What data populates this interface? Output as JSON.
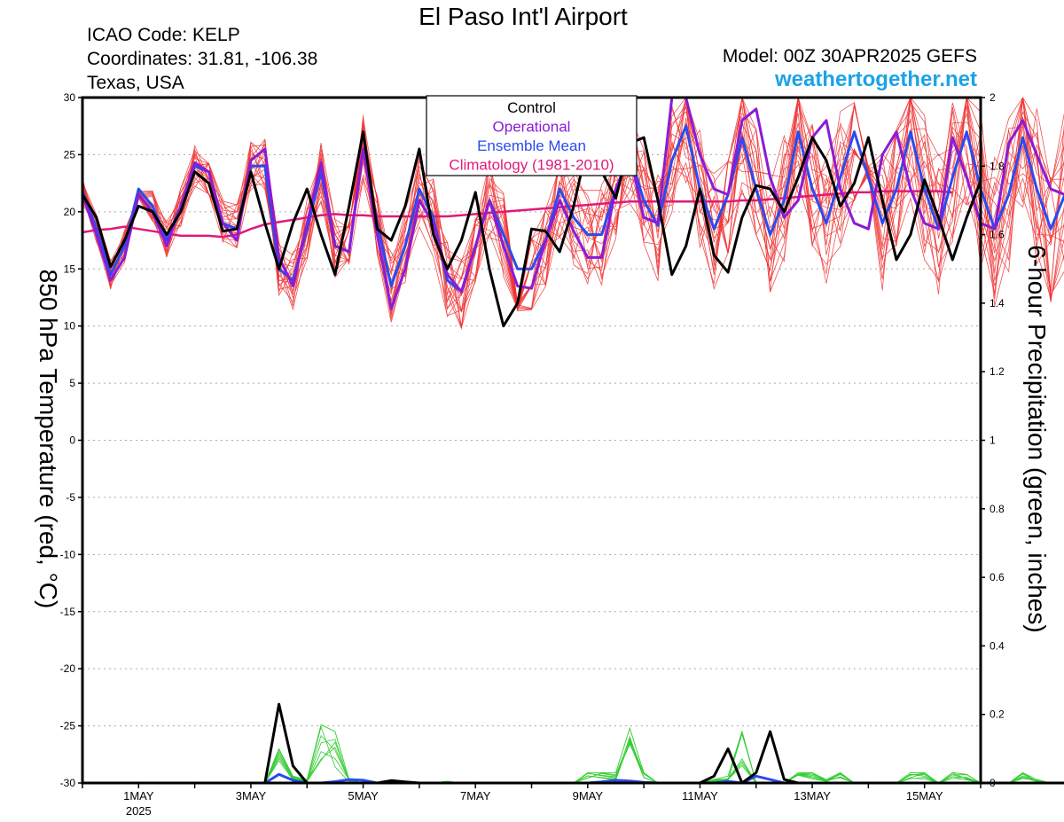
{
  "header": {
    "title": "El Paso Int'l Airport",
    "icao": "ICAO Code: KELP",
    "coordinates": "Coordinates: 31.81, -106.38",
    "region": "Texas, USA",
    "model": "Model: 00Z 30APR2025 GEFS",
    "site": "weathertogether.net"
  },
  "colors": {
    "ensemble_members": "#ee3333",
    "control": "#000000",
    "operational": "#8a1cd6",
    "ensemble_mean": "#2a4bef",
    "climatology": "#e0197a",
    "precip_members": "#33cc33",
    "site": "#1aa3e8"
  },
  "chart_data": {
    "type": "line",
    "y_left": {
      "label": "850 hPa Temperature (red, °C)",
      "range": [
        -30,
        30
      ],
      "ticks": [
        "30",
        "25",
        "20",
        "15",
        "10",
        "5",
        "0",
        "-5",
        "-10",
        "-15",
        "-20",
        "-25",
        "-30"
      ]
    },
    "y_right": {
      "label": "6-hour Precipitation (green, inches)",
      "range": [
        0,
        2
      ],
      "ticks": [
        "2",
        "1.8",
        "1.6",
        "1.4",
        "1.2",
        "1",
        "0.8",
        "0.6",
        "0.4",
        "0.2",
        "0"
      ]
    },
    "x": {
      "start": "2025-04-30T00Z",
      "end": "2025-05-16T00Z",
      "step_hours": 6,
      "tick_labels": [
        "1MAY",
        "3MAY",
        "5MAY",
        "7MAY",
        "9MAY",
        "11MAY",
        "13MAY",
        "15MAY"
      ],
      "year_label": "2025"
    },
    "grid": "horizontal dotted",
    "legend": {
      "position": "top-center",
      "entries": [
        "Control",
        "Operational",
        "Ensemble Mean",
        "Climatology (1981-2010)"
      ]
    },
    "series": [
      {
        "name": "Control",
        "values": [
          21.5,
          19.5,
          15.2,
          17.5,
          20.5,
          20,
          18,
          20,
          23.5,
          22.5,
          18.3,
          18.5,
          23.5,
          19,
          15,
          19,
          22,
          18,
          14.5,
          20.5,
          27,
          18.5,
          17.5,
          20.5,
          25.5,
          18,
          15,
          17.5,
          21.7,
          15,
          10,
          12,
          18.5,
          18.3,
          16.5,
          20.5,
          26,
          23.5,
          21.2,
          26,
          26.5,
          21,
          14.5,
          17,
          22,
          16.2,
          14.7,
          19.5,
          22.3,
          22,
          20,
          23,
          26.5,
          24.5,
          20.5,
          22.5,
          26.5,
          21,
          15.8,
          18,
          22.8,
          19.5,
          15.8,
          19.5,
          22.7
        ]
      },
      {
        "name": "Operational",
        "values": [
          21.5,
          18,
          14,
          16,
          21.5,
          20,
          17,
          20.5,
          24.3,
          23.5,
          19,
          17.5,
          24.5,
          25.5,
          16,
          13.5,
          19,
          24.3,
          17,
          16.5,
          25.5,
          18,
          11.5,
          15,
          21,
          19,
          14.5,
          13,
          17,
          21,
          17,
          13.5,
          13.3,
          17.5,
          21,
          18.3,
          16,
          16,
          22,
          25,
          19.5,
          19,
          30,
          30,
          25,
          22,
          21.5,
          28,
          29,
          23,
          19.5,
          21,
          26.5,
          28,
          22,
          19,
          18.5,
          25,
          27,
          22,
          19,
          18.5,
          26.5,
          23,
          19,
          18.5,
          26,
          28,
          25,
          22,
          21.5,
          26.5
        ]
      },
      {
        "name": "Ensemble Mean",
        "values": [
          21.8,
          18.5,
          14.5,
          17,
          22,
          20.5,
          17.5,
          20.5,
          24,
          23.5,
          19,
          18.5,
          24,
          24,
          15,
          14,
          18.5,
          23.5,
          17,
          16.5,
          25.5,
          19,
          13.5,
          17,
          22,
          19.5,
          14,
          13,
          17,
          21,
          18,
          15,
          15,
          17.5,
          22,
          19.5,
          18,
          18,
          22,
          25,
          21,
          18.8,
          24.5,
          27.5,
          22,
          18.5,
          21.5,
          26.5,
          22,
          18,
          21,
          27,
          22,
          19,
          23,
          27,
          23,
          19,
          22,
          27,
          22,
          18.5,
          23,
          27,
          22,
          18.5,
          21.5,
          26.5,
          22,
          18.5,
          21.5,
          26.5
        ]
      },
      {
        "name": "Climatology (1981-2010)",
        "values": [
          18.2,
          18.4,
          18.5,
          18.7,
          18.5,
          18.3,
          18.1,
          17.9,
          17.9,
          17.9,
          17.8,
          18,
          18.5,
          18.9,
          19.1,
          19.3,
          19.5,
          19.7,
          19.8,
          19.7,
          19.7,
          19.6,
          19.6,
          19.6,
          19.6,
          19.6,
          19.6,
          19.7,
          19.8,
          19.9,
          20,
          20.1,
          20.2,
          20.3,
          20.4,
          20.5,
          20.6,
          20.7,
          20.8,
          20.9,
          20.9,
          20.9,
          20.9,
          20.9,
          20.9,
          20.9,
          20.9,
          21,
          21,
          21.1,
          21.2,
          21.3,
          21.4,
          21.5,
          21.6,
          21.7,
          21.7,
          21.8,
          21.8,
          21.8,
          21.8,
          21.8,
          21.7
        ]
      },
      {
        "name": "Control Precipitation",
        "axis": "right",
        "values": [
          0,
          0,
          0,
          0,
          0,
          0,
          0,
          0,
          0,
          0,
          0,
          0,
          0,
          0,
          0.23,
          0.05,
          0,
          0,
          0,
          0,
          0,
          0,
          0.007,
          0.003,
          0,
          0,
          0,
          0,
          0,
          0,
          0,
          0,
          0,
          0,
          0,
          0,
          0,
          0,
          0,
          0,
          0,
          0,
          0,
          0,
          0,
          0.02,
          0.1,
          0,
          0.03,
          0.15,
          0.01,
          0,
          0,
          0,
          0,
          0,
          0,
          0,
          0,
          0,
          0,
          0,
          0,
          0,
          0,
          0,
          0,
          0,
          0,
          0,
          0,
          0,
          0
        ]
      },
      {
        "name": "Ensemble Mean Precipitation",
        "axis": "right",
        "values": [
          0,
          0,
          0,
          0,
          0,
          0,
          0,
          0,
          0,
          0,
          0,
          0,
          0,
          0,
          0.025,
          0.008,
          0,
          0,
          0.004,
          0.01,
          0.008,
          0,
          0,
          0,
          0,
          0,
          0,
          0,
          0,
          0,
          0,
          0,
          0,
          0,
          0,
          0,
          0,
          0.003,
          0.008,
          0.006,
          0.002,
          0,
          0,
          0,
          0,
          0,
          0.005,
          0,
          0.02,
          0.01,
          0,
          0,
          0,
          0,
          0,
          0,
          0,
          0,
          0,
          0,
          0,
          0,
          0,
          0,
          0,
          0,
          0,
          0,
          0,
          0,
          0,
          0,
          0
        ]
      },
      {
        "name": "Ensemble Precipitation Max",
        "axis": "right",
        "values": [
          0,
          0,
          0,
          0,
          0,
          0,
          0,
          0,
          0,
          0,
          0,
          0,
          0,
          0,
          0.1,
          0.02,
          0.01,
          0.17,
          0.15,
          0.01,
          0,
          0,
          0,
          0,
          0,
          0,
          0.005,
          0,
          0,
          0,
          0,
          0,
          0,
          0,
          0,
          0,
          0.03,
          0.03,
          0.03,
          0.16,
          0.03,
          0,
          0,
          0,
          0,
          0.01,
          0.02,
          0.15,
          0,
          0,
          0,
          0.03,
          0.03,
          0.01,
          0.03,
          0,
          0,
          0,
          0,
          0.03,
          0.03,
          0,
          0.03,
          0.025,
          0,
          0,
          0,
          0.03,
          0.01,
          0,
          0,
          0,
          0
        ]
      }
    ]
  }
}
